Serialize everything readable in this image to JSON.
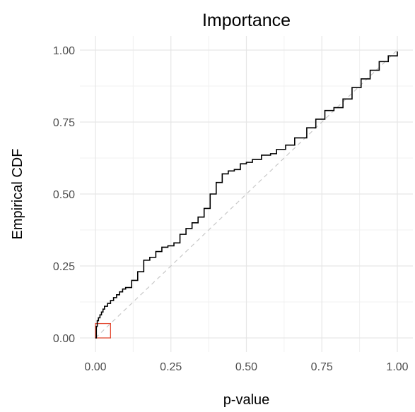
{
  "chart_data": {
    "type": "line",
    "title": "Importance",
    "xlabel": "p-value",
    "ylabel": "Empirical CDF",
    "xlim": [
      0,
      1
    ],
    "ylim": [
      0,
      1
    ],
    "x_ticks": [
      "0.00",
      "0.25",
      "0.50",
      "0.75",
      "1.00"
    ],
    "y_ticks": [
      "0.00",
      "0.25",
      "0.50",
      "0.75",
      "1.00"
    ],
    "grid": true,
    "series": [
      {
        "kind": "ecdf-step",
        "color": "#000000",
        "x": [
          0.0,
          0.003,
          0.006,
          0.01,
          0.015,
          0.02,
          0.025,
          0.03,
          0.04,
          0.05,
          0.06,
          0.07,
          0.08,
          0.09,
          0.1,
          0.12,
          0.14,
          0.16,
          0.18,
          0.2,
          0.22,
          0.24,
          0.26,
          0.28,
          0.3,
          0.32,
          0.34,
          0.36,
          0.38,
          0.4,
          0.42,
          0.44,
          0.46,
          0.48,
          0.5,
          0.52,
          0.55,
          0.58,
          0.6,
          0.63,
          0.66,
          0.7,
          0.73,
          0.76,
          0.79,
          0.82,
          0.85,
          0.88,
          0.91,
          0.94,
          0.97,
          1.0
        ],
        "y": [
          0.0,
          0.04,
          0.06,
          0.07,
          0.08,
          0.09,
          0.1,
          0.11,
          0.12,
          0.13,
          0.14,
          0.15,
          0.16,
          0.17,
          0.175,
          0.2,
          0.23,
          0.27,
          0.28,
          0.3,
          0.315,
          0.32,
          0.33,
          0.36,
          0.38,
          0.4,
          0.42,
          0.45,
          0.5,
          0.54,
          0.57,
          0.58,
          0.585,
          0.605,
          0.61,
          0.62,
          0.635,
          0.64,
          0.655,
          0.67,
          0.695,
          0.73,
          0.76,
          0.79,
          0.8,
          0.83,
          0.87,
          0.9,
          0.93,
          0.96,
          0.98,
          0.995
        ]
      },
      {
        "kind": "reference-diagonal",
        "color": "#c8c8c8",
        "dash": true,
        "x": [
          0,
          1
        ],
        "y": [
          0,
          1
        ]
      }
    ],
    "annotations": [
      {
        "kind": "rectangle",
        "color": "#e34a33",
        "xmin": 0,
        "xmax": 0.05,
        "ymin": 0,
        "ymax": 0.05
      }
    ]
  }
}
